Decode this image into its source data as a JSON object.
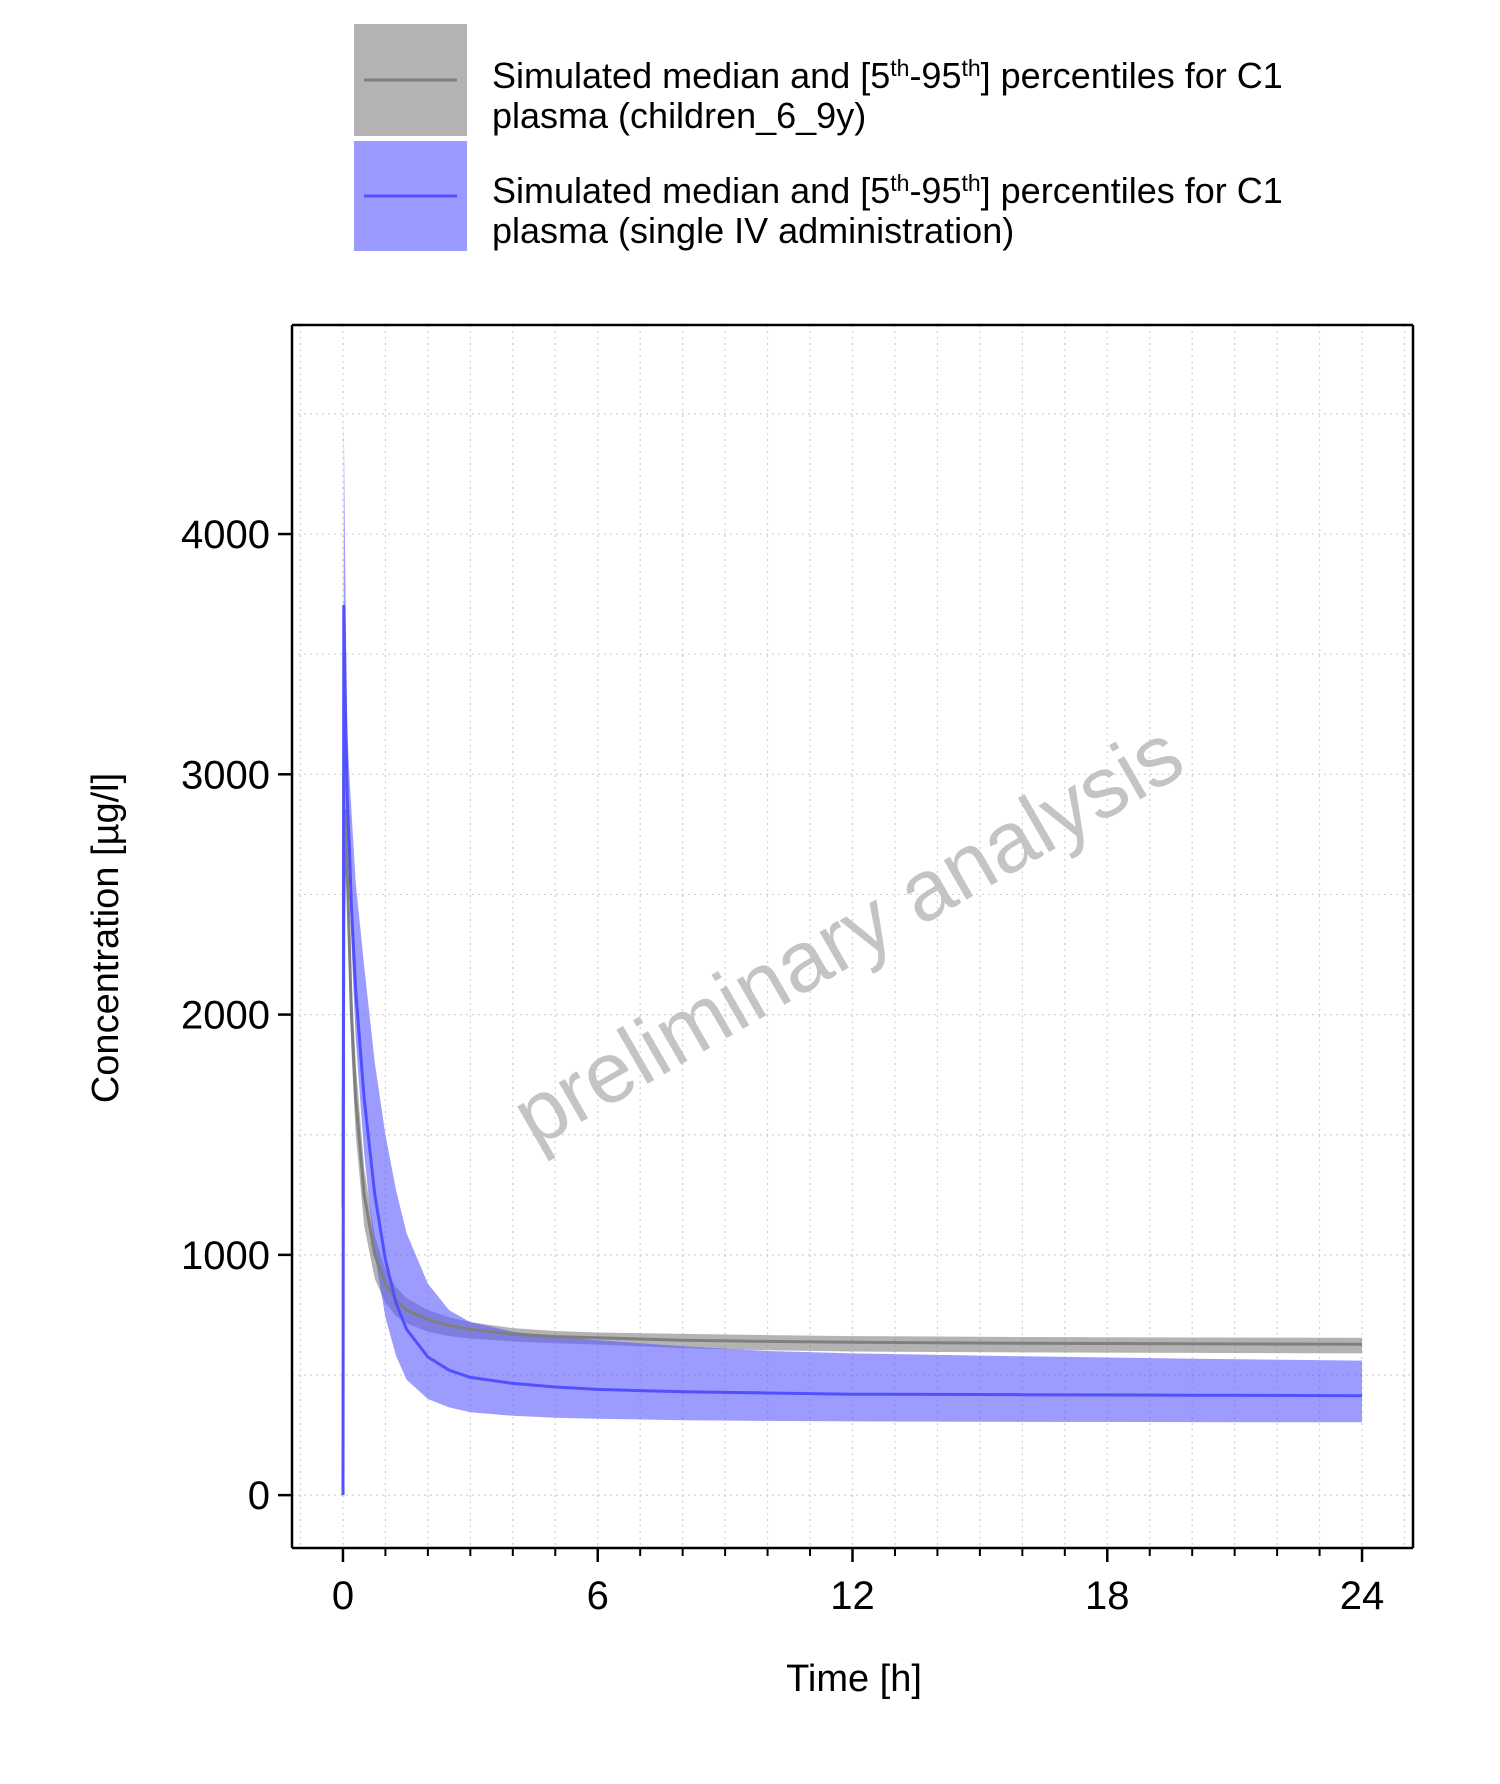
{
  "chart_data": {
    "type": "line",
    "xlabel": "Time [h]",
    "ylabel": "Concentration [µg/l]",
    "watermark": "preliminary analysis",
    "xlim": [
      -1.2,
      25.2
    ],
    "ylim": [
      -220,
      4870
    ],
    "x_ticks": [
      0,
      6,
      12,
      18,
      24
    ],
    "y_ticks": [
      0,
      1000,
      2000,
      3000,
      4000
    ],
    "x_minor_step": 1,
    "y_minor_step": 500,
    "grid": true,
    "legend_position": "top",
    "series": [
      {
        "id": "children",
        "legend_lines": [
          "Simulated median and [5th-95th] percentiles for C1",
          "plasma (children_6_9y)"
        ],
        "line_color": "#7f7f7f",
        "band_color": "#808080",
        "band_opacity": 0.6,
        "legend_band_color": "#b3b3b3",
        "x": [
          0,
          0.02,
          0.05,
          0.1,
          0.2,
          0.3,
          0.5,
          0.75,
          1.0,
          1.25,
          1.5,
          2.0,
          2.5,
          3.0,
          4.0,
          5.0,
          6.0,
          8.0,
          10.0,
          12.0,
          16.0,
          20.0,
          24.0
        ],
        "median": [
          1200,
          2400,
          2850,
          2600,
          2000,
          1650,
          1250,
          1000,
          880,
          810,
          770,
          730,
          705,
          690,
          670,
          660,
          655,
          645,
          640,
          636,
          632,
          630,
          628
        ],
        "lower": [
          1150,
          2300,
          2750,
          2450,
          1850,
          1500,
          1120,
          900,
          800,
          745,
          715,
          680,
          662,
          652,
          640,
          632,
          627,
          612,
          603,
          598,
          594,
          592,
          590
        ],
        "upper": [
          1250,
          2550,
          3000,
          2780,
          2150,
          1800,
          1360,
          1080,
          940,
          865,
          820,
          770,
          740,
          720,
          695,
          683,
          677,
          671,
          666,
          662,
          658,
          656,
          655
        ]
      },
      {
        "id": "iv",
        "legend_lines": [
          "Simulated median and [5th-95th] percentiles for C1",
          "plasma (single IV administration)"
        ],
        "line_color": "#5050ff",
        "band_color": "#5a5aff",
        "band_opacity": 0.6,
        "legend_band_color": "#9a9aff",
        "x": [
          0,
          0.02,
          0.05,
          0.1,
          0.15,
          0.2,
          0.3,
          0.5,
          0.75,
          1.0,
          1.25,
          1.5,
          2.0,
          2.5,
          3.0,
          4.0,
          5.0,
          6.0,
          8.0,
          10.0,
          12.0,
          16.0,
          20.0,
          24.0
        ],
        "median": [
          0,
          3700,
          3350,
          2900,
          2700,
          2450,
          2100,
          1650,
          1250,
          980,
          800,
          690,
          575,
          520,
          490,
          465,
          450,
          440,
          430,
          425,
          420,
          418,
          416,
          414
        ],
        "lower": [
          0,
          3600,
          3200,
          2800,
          2550,
          2300,
          1900,
          1420,
          1000,
          740,
          580,
          480,
          400,
          365,
          345,
          330,
          322,
          318,
          312,
          309,
          307,
          305,
          304,
          303
        ],
        "upper": [
          0,
          4480,
          3900,
          3200,
          3000,
          2850,
          2550,
          2200,
          1800,
          1500,
          1270,
          1090,
          880,
          770,
          720,
          680,
          660,
          645,
          620,
          600,
          590,
          578,
          568,
          560
        ]
      }
    ]
  }
}
